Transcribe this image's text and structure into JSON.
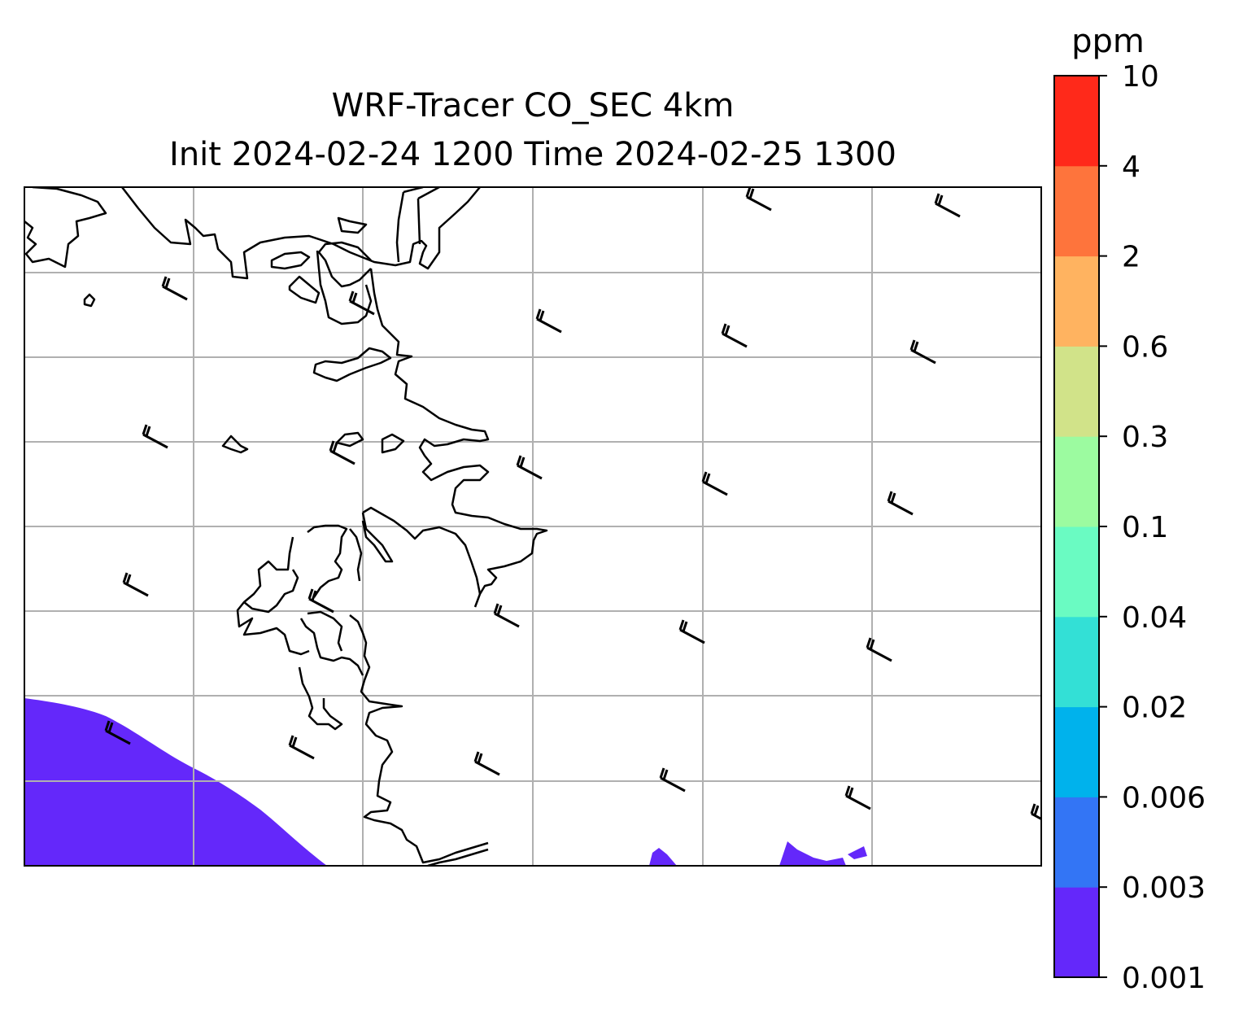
{
  "title": {
    "line1": "WRF-Tracer CO_SEC 4km",
    "line2": "Init 2024-02-24 1200 Time 2024-02-25 1300"
  },
  "colorbar": {
    "unit": "ppm",
    "levels": [
      "0.001",
      "0.003",
      "0.006",
      "0.02",
      "0.04",
      "0.1",
      "0.3",
      "0.6",
      "2",
      "4",
      "10"
    ],
    "colors": [
      "#6428fa",
      "#3375f5",
      "#00b2ec",
      "#33e0d6",
      "#6afbc2",
      "#9cfba0",
      "#d1e389",
      "#ffb360",
      "#fe743c",
      "#ff291a"
    ]
  },
  "map": {
    "frame_color": "#000000",
    "grid_color": "#b0b0b0",
    "coastline_color": "#000000",
    "lowest_bin_color": "#6428fa",
    "wind_barbs": [
      {
        "name": "barb-1"
      },
      {
        "name": "barb-2"
      },
      {
        "name": "barb-3"
      },
      {
        "name": "barb-4"
      },
      {
        "name": "barb-5"
      },
      {
        "name": "barb-6"
      },
      {
        "name": "barb-7"
      },
      {
        "name": "barb-8"
      },
      {
        "name": "barb-9"
      },
      {
        "name": "barb-10"
      },
      {
        "name": "barb-11"
      },
      {
        "name": "barb-12"
      },
      {
        "name": "barb-13"
      },
      {
        "name": "barb-14"
      },
      {
        "name": "barb-15"
      },
      {
        "name": "barb-16"
      },
      {
        "name": "barb-17"
      },
      {
        "name": "barb-18"
      },
      {
        "name": "barb-19"
      },
      {
        "name": "barb-20"
      },
      {
        "name": "barb-21"
      },
      {
        "name": "barb-22"
      },
      {
        "name": "barb-23"
      },
      {
        "name": "barb-24"
      },
      {
        "name": "barb-25"
      },
      {
        "name": "barb-26"
      },
      {
        "name": "barb-27"
      },
      {
        "name": "barb-28"
      }
    ]
  }
}
